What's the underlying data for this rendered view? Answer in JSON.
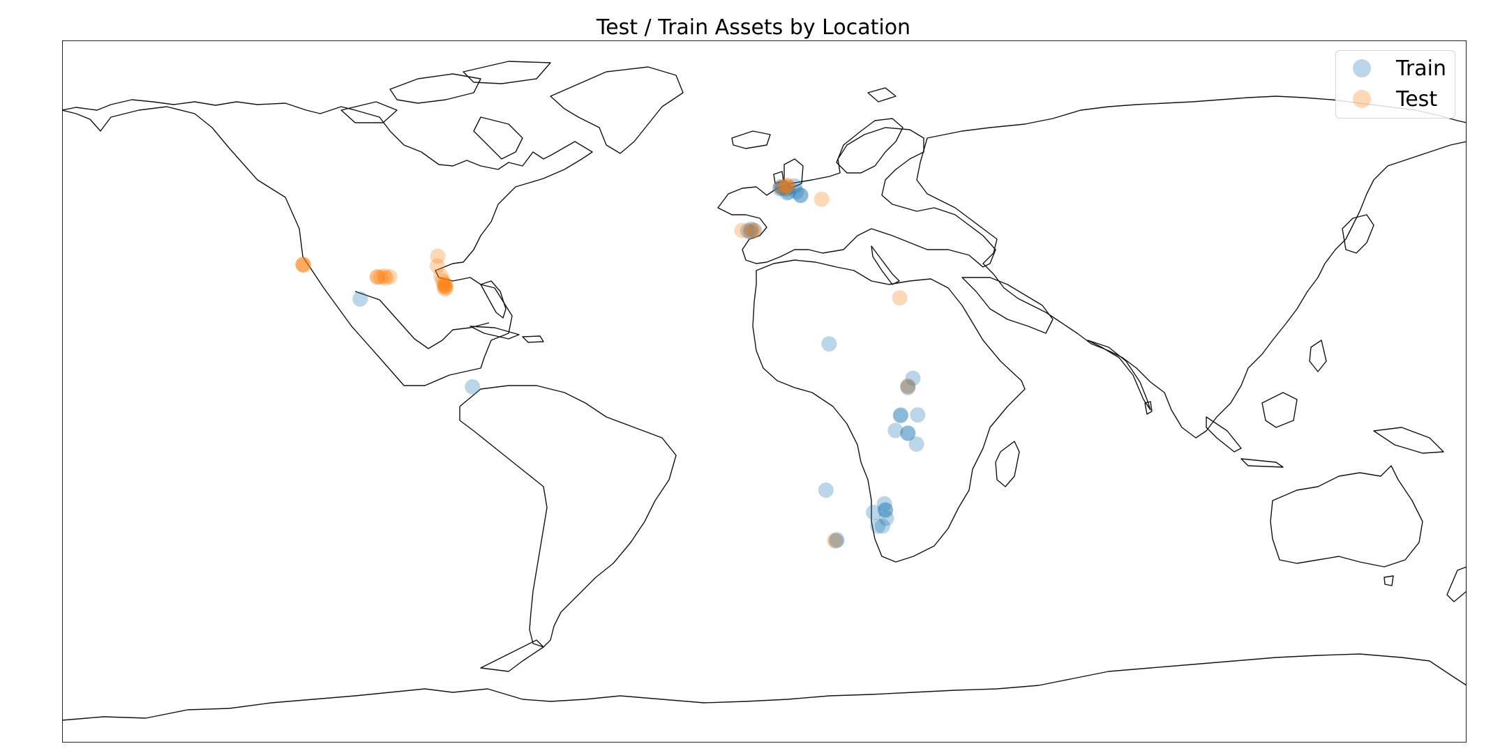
{
  "chart_data": {
    "type": "scatter",
    "title": "Test / Train Assets by Location",
    "xlabel": "",
    "ylabel": "",
    "projection": "plate-carree",
    "xlim": [
      -180,
      180
    ],
    "ylim": [
      -90,
      90
    ],
    "grid": false,
    "legend_placement": "top-right",
    "series": [
      {
        "name": "Train",
        "color": "#1f77b4",
        "alpha": 0.3,
        "points": [
          [
            4.0,
            52.0
          ],
          [
            5.5,
            51.9
          ],
          [
            4.5,
            52.2
          ],
          [
            6.0,
            52.3
          ],
          [
            7.8,
            52.7
          ],
          [
            8.2,
            51.2
          ],
          [
            6.2,
            51.1
          ],
          [
            5.8,
            50.9
          ],
          [
            4.7,
            52.3
          ],
          [
            4.2,
            52.5
          ],
          [
            9.3,
            50.3
          ],
          [
            9.3,
            50.3
          ],
          [
            -4.3,
            41.2
          ],
          [
            -3.4,
            41.6
          ],
          [
            -2.6,
            41.3
          ],
          [
            -3.6,
            40.9
          ],
          [
            16.6,
            12.2
          ],
          [
            38.1,
            3.4
          ],
          [
            36.8,
            1.4
          ],
          [
            36.8,
            1.0
          ],
          [
            35.0,
            -6.0
          ],
          [
            34.9,
            -6.2
          ],
          [
            39.3,
            -6.0
          ],
          [
            33.6,
            -10.0
          ],
          [
            36.8,
            -10.7
          ],
          [
            36.8,
            -10.7
          ],
          [
            39.0,
            -13.5
          ],
          [
            15.8,
            -25.3
          ],
          [
            28.0,
            -31.0
          ],
          [
            30.8,
            -28.8
          ],
          [
            31.0,
            -30.3
          ],
          [
            31.1,
            -30.5
          ],
          [
            31.3,
            -32.5
          ],
          [
            30.3,
            -34.5
          ],
          [
            29.1,
            -34.5
          ],
          [
            18.6,
            -38.0
          ],
          [
            18.4,
            -38.3
          ],
          [
            -103.6,
            23.7
          ],
          [
            -74.8,
            1.2
          ]
        ]
      },
      {
        "name": "Test",
        "color": "#ff7f0e",
        "alpha": 0.3,
        "points": [
          [
            -118.2,
            32.5
          ],
          [
            -118.3,
            32.6
          ],
          [
            -118.1,
            32.4
          ],
          [
            -98.3,
            29.3
          ],
          [
            -99.3,
            29.4
          ],
          [
            -97.4,
            29.6
          ],
          [
            -97.0,
            29.1
          ],
          [
            -99.1,
            29.3
          ],
          [
            -96.0,
            29.4
          ],
          [
            -83.7,
            34.7
          ],
          [
            -83.8,
            32.2
          ],
          [
            -82.9,
            29.6
          ],
          [
            -82.5,
            28.4
          ],
          [
            -82.0,
            27.7
          ],
          [
            -81.8,
            27.3
          ],
          [
            -82.1,
            26.9
          ],
          [
            -81.9,
            26.3
          ],
          [
            -81.6,
            26.6
          ],
          [
            -81.8,
            27.1
          ],
          [
            -5.7,
            41.3
          ],
          [
            -3.2,
            41.0
          ],
          [
            -2.7,
            41.4
          ],
          [
            4.3,
            52.3
          ],
          [
            5.5,
            52.4
          ],
          [
            5.9,
            52.7
          ],
          [
            5.9,
            52.9
          ],
          [
            14.7,
            49.3
          ],
          [
            34.7,
            24.0
          ],
          [
            36.8,
            1.3
          ],
          [
            18.0,
            -38.2
          ]
        ]
      }
    ]
  }
}
